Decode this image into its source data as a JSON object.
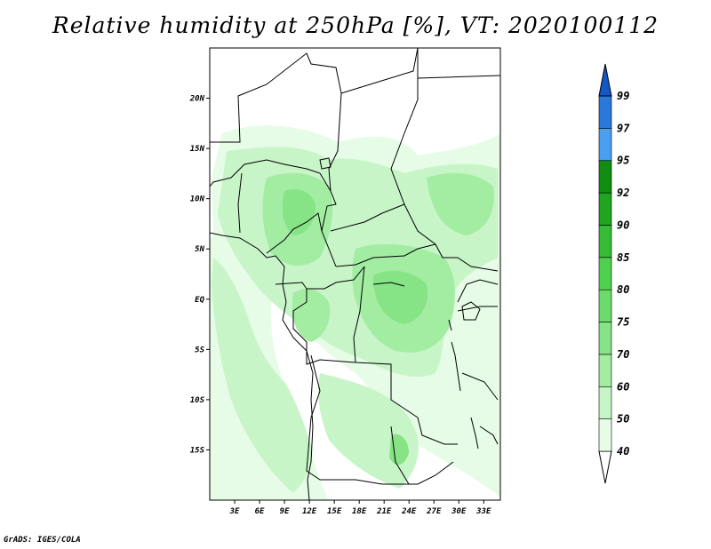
{
  "title": "Relative humidity at 250hPa [%], VT: 2020100112",
  "credit": "GrADS: IGES/COLA",
  "map": {
    "lon_range": [
      0,
      35
    ],
    "lat_range": [
      -20,
      25
    ],
    "lat_ticks": [
      {
        "value": 20,
        "label": "20N"
      },
      {
        "value": 15,
        "label": "15N"
      },
      {
        "value": 10,
        "label": "10N"
      },
      {
        "value": 5,
        "label": "5N"
      },
      {
        "value": 0,
        "label": "EQ"
      },
      {
        "value": -5,
        "label": "5S"
      },
      {
        "value": -10,
        "label": "10S"
      },
      {
        "value": -15,
        "label": "15S"
      }
    ],
    "lon_ticks": [
      {
        "value": 3,
        "label": "3E"
      },
      {
        "value": 6,
        "label": "6E"
      },
      {
        "value": 9,
        "label": "9E"
      },
      {
        "value": 12,
        "label": "12E"
      },
      {
        "value": 15,
        "label": "15E"
      },
      {
        "value": 18,
        "label": "18E"
      },
      {
        "value": 21,
        "label": "21E"
      },
      {
        "value": 24,
        "label": "24E"
      },
      {
        "value": 27,
        "label": "27E"
      },
      {
        "value": 30,
        "label": "30E"
      },
      {
        "value": 33,
        "label": "33E"
      }
    ]
  },
  "colorbar": {
    "levels": [
      "40",
      "50",
      "60",
      "70",
      "75",
      "80",
      "85",
      "90",
      "92",
      "95",
      "97",
      "99"
    ],
    "colors": [
      "#ffffff",
      "#e6fce6",
      "#c8f5c8",
      "#a3eda3",
      "#86e486",
      "#6bdc6b",
      "#4fd14f",
      "#35bb35",
      "#1fa51f",
      "#118d11",
      "#4a9ff0",
      "#2a78dc",
      "#1457c8"
    ]
  }
}
